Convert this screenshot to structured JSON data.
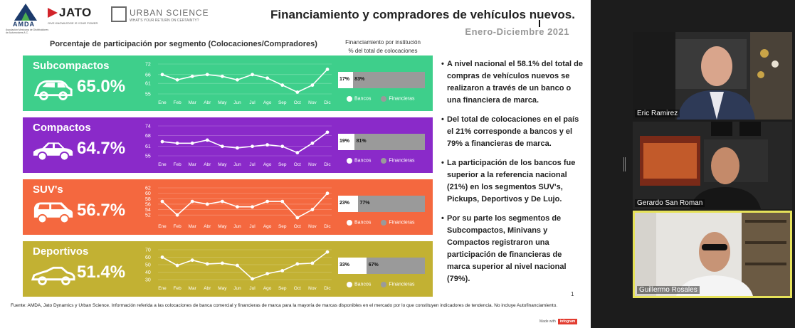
{
  "slide": {
    "title": "Financiamiento y compradores de vehículos nuevos.",
    "period": "Enero-Diciembre  2021",
    "subtitle": "Porcentaje de participación por segmento (Colocaciones/Compradores)",
    "institution_header_line1": "Financiamiento por institución",
    "institution_header_line2": "% del total de colocaciones",
    "logos": {
      "amda": "AMDA",
      "amda_sub": "Asociación Mexicana de Distribuidores de Automotores A.C.",
      "jato": "JATO",
      "jato_tag": "GIVE KNOWLEDGE IS YOUR POWER",
      "urban": "URBAN SCIENCE",
      "urban_tag": "WHAT'S YOUR RETURN ON CERTAINTY?"
    },
    "legend": {
      "banks": "Bancos",
      "financieras": "Financieras"
    },
    "segments": [
      {
        "name": "Subcompactos",
        "percent": "65.0%",
        "color": "#3ecf8b",
        "icon": "car-hatchback-icon",
        "banks_label": "17%",
        "financieras_label": "83%",
        "banks_share": 0.17
      },
      {
        "name": "Compactos",
        "percent": "64.7%",
        "color": "#8a2ac9",
        "icon": "car-sedan-icon",
        "banks_label": "19%",
        "financieras_label": "81%",
        "banks_share": 0.19
      },
      {
        "name": "SUV's",
        "percent": "56.7%",
        "color": "#f4683f",
        "icon": "suv-icon",
        "banks_label": "23%",
        "financieras_label": "77%",
        "banks_share": 0.23
      },
      {
        "name": "Deportivos",
        "percent": "51.4%",
        "color": "#c2b133",
        "icon": "sports-car-icon",
        "banks_label": "33%",
        "financieras_label": "67%",
        "banks_share": 0.33
      }
    ],
    "bullets": [
      "A nivel nacional el 58.1% del total de compras de vehículos nuevos se realizaron a través de un banco o una financiera de marca.",
      "Del total de colocaciones en el país el 21% corresponde a bancos y el 79% a financieras de marca.",
      "La participación de los bancos fue superior a la referencia nacional (21%) en los segmentos SUV's, Pickups, Deportivos y De Lujo.",
      "Por su parte los segmentos de Subcompactos, Minivans y Compactos registraron una participación de financieras de marca superior al nivel nacional (79%)."
    ],
    "page_number": "1",
    "source": "Fuente: AMDA, Jato Dynamics y Urban Science. Información referida a las colocaciones de banca comercial y financieras de marca para la mayoría de marcas disponibles en el mercado por lo que constituyen indicadores de tendencia. No incluye Autofinanciamiento.",
    "made_with": "Made with",
    "made_with_brand": "infogram"
  },
  "chart_data": [
    {
      "type": "line",
      "title": "Subcompactos",
      "x": [
        "Ene",
        "Feb",
        "Mar",
        "Abr",
        "May",
        "Jun",
        "Jul",
        "Ago",
        "Sep",
        "Oct",
        "Nov",
        "Dic"
      ],
      "yticks": [
        72,
        66,
        61,
        55
      ],
      "ylim": [
        55,
        72
      ],
      "series": [
        {
          "values": [
            66,
            63,
            65,
            66,
            65,
            63,
            66,
            64,
            60,
            56,
            60,
            69
          ]
        }
      ]
    },
    {
      "type": "line",
      "title": "Compactos",
      "x": [
        "Ene",
        "Feb",
        "Mar",
        "Abr",
        "May",
        "Jun",
        "Jul",
        "Ago",
        "Sep",
        "Oct",
        "Nov",
        "Dic"
      ],
      "yticks": [
        74,
        68,
        61,
        55
      ],
      "ylim": [
        55,
        74
      ],
      "series": [
        {
          "values": [
            64,
            63,
            63,
            65,
            61,
            60,
            61,
            62,
            61,
            57,
            63,
            70
          ]
        }
      ]
    },
    {
      "type": "line",
      "title": "SUV's",
      "x": [
        "Ene",
        "Feb",
        "Mar",
        "Abr",
        "May",
        "Jun",
        "Jul",
        "Ago",
        "Sep",
        "Oct",
        "Nov",
        "Dic"
      ],
      "yticks": [
        62,
        60,
        58,
        56,
        54,
        52
      ],
      "ylim": [
        51,
        62
      ],
      "series": [
        {
          "values": [
            57,
            52,
            57,
            56,
            57,
            55,
            55,
            57,
            57,
            51,
            54,
            60
          ]
        }
      ]
    },
    {
      "type": "line",
      "title": "Deportivos",
      "x": [
        "Ene",
        "Feb",
        "Mar",
        "Abr",
        "May",
        "Jun",
        "Jul",
        "Ago",
        "Sep",
        "Oct",
        "Nov",
        "Dic"
      ],
      "yticks": [
        70,
        60,
        50,
        40,
        30
      ],
      "ylim": [
        30,
        70
      ],
      "series": [
        {
          "values": [
            60,
            49,
            56,
            51,
            52,
            49,
            31,
            38,
            42,
            51,
            52,
            67
          ]
        }
      ]
    }
  ],
  "participants": [
    {
      "name": "Eric Ramirez"
    },
    {
      "name": "Gerardo San Roman"
    },
    {
      "name": "Guillermo Rosales"
    }
  ]
}
